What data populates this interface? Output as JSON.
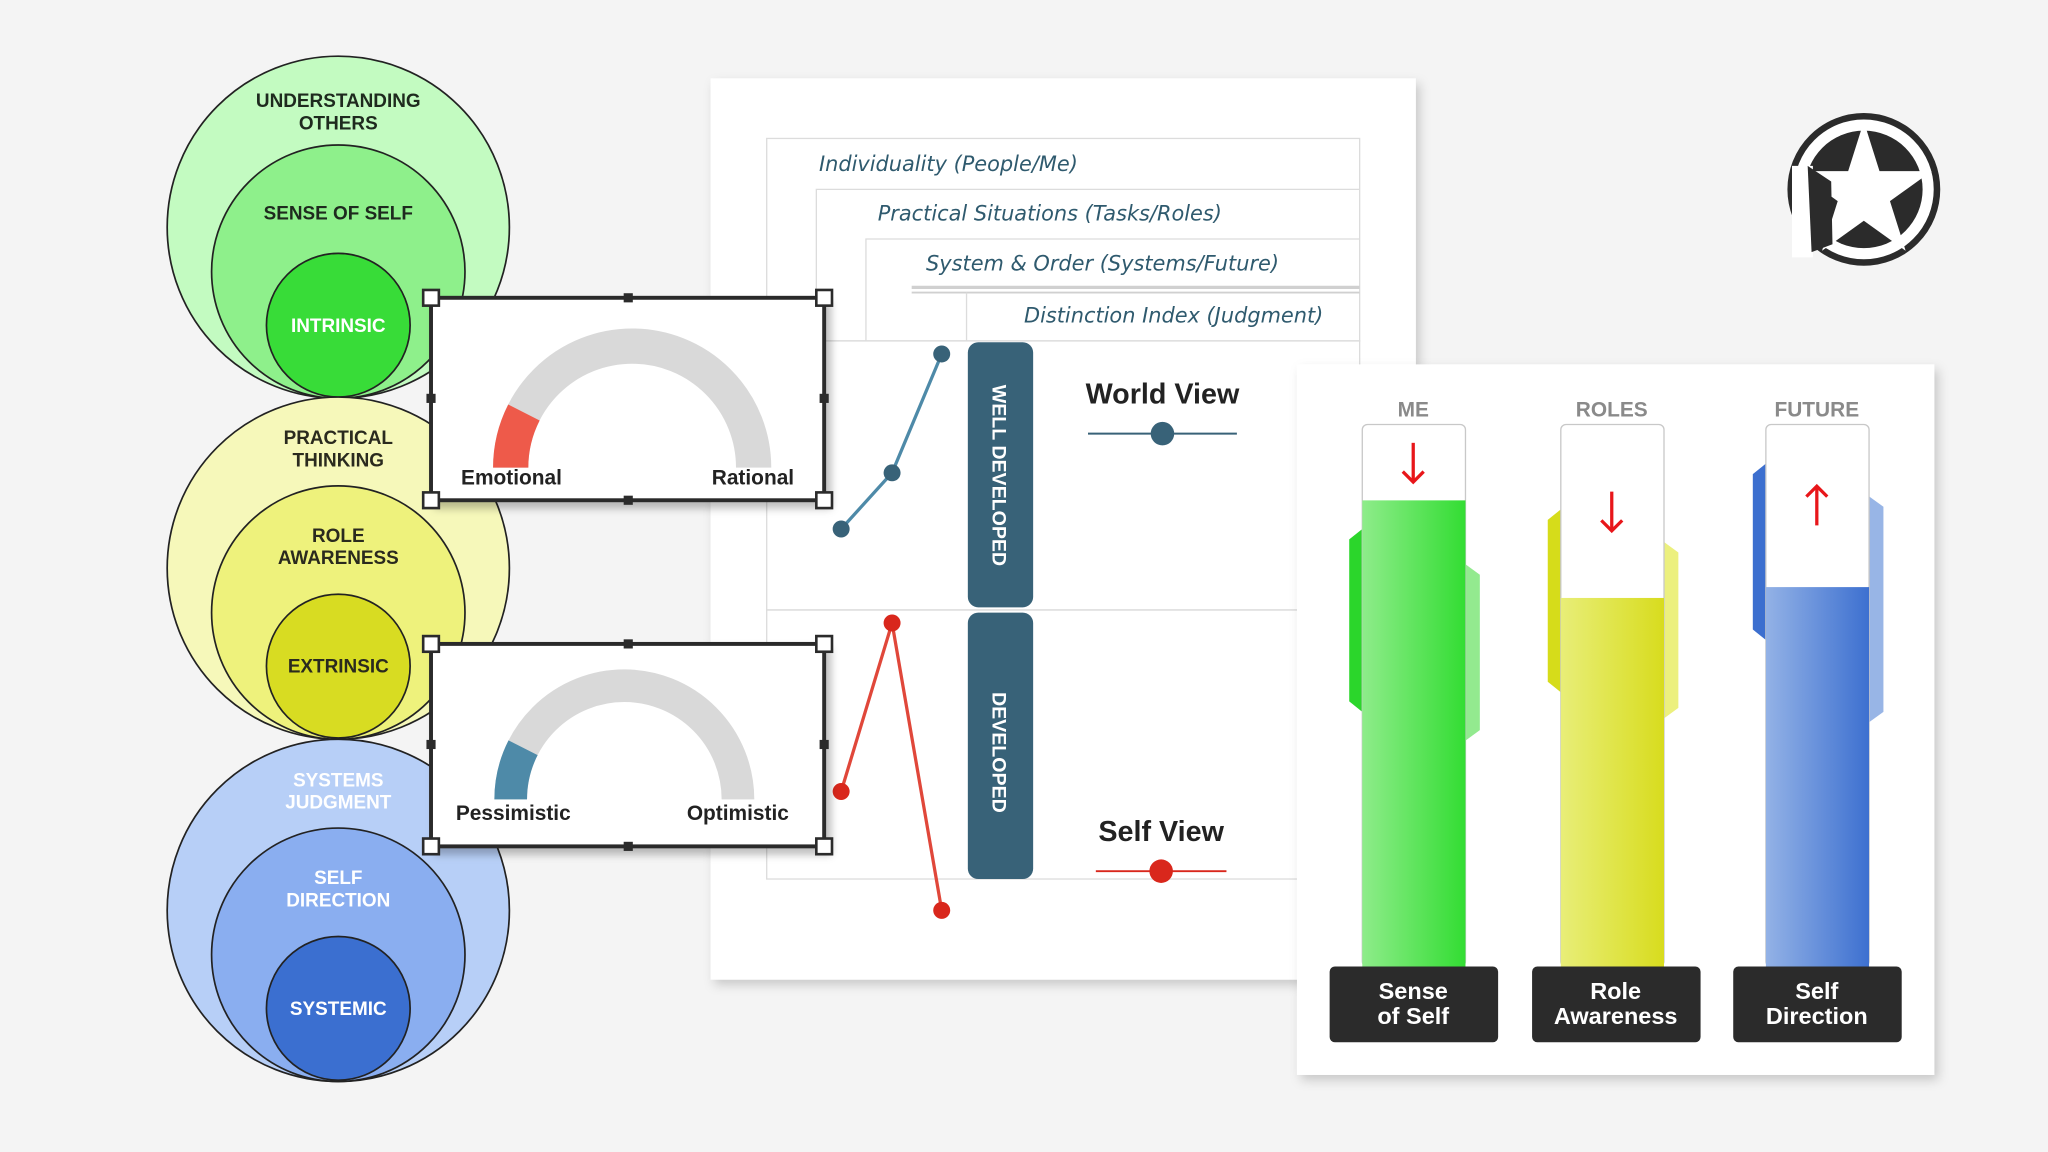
{
  "circle_groups": [
    {
      "outer": [
        "UNDERSTANDING",
        "OTHERS"
      ],
      "middle": [
        "SENSE OF SELF"
      ],
      "inner": "INTRINSIC",
      "colors": {
        "outer": "#c3fbc1",
        "middle": "#8ef08b",
        "inner": "#38dc38",
        "text": "#1e2a1e",
        "inner_text": "#ffffff"
      }
    },
    {
      "outer": [
        "PRACTICAL",
        "THINKING"
      ],
      "middle": [
        "ROLE",
        "AWARENESS"
      ],
      "inner": "EXTRINSIC",
      "colors": {
        "outer": "#f6f8ba",
        "middle": "#eef27c",
        "inner": "#d8dc22",
        "text": "#2a2a1e",
        "inner_text": "#2a2a1e"
      }
    },
    {
      "outer": [
        "SYSTEMS",
        "JUDGMENT"
      ],
      "middle": [
        "SELF",
        "DIRECTION"
      ],
      "inner": "SYSTEMIC",
      "colors": {
        "outer": "#b7cff7",
        "middle": "#8aaef0",
        "inner": "#3b6fd0",
        "text": "#ffffff",
        "inner_text": "#ffffff"
      }
    }
  ],
  "gauges": [
    {
      "left_label": "Emotional",
      "right_label": "Rational",
      "value": 0.15,
      "color": "#ee5a4a"
    },
    {
      "left_label": "Pessimistic",
      "right_label": "Optimistic",
      "value": 0.15,
      "color": "#4e8aa8"
    }
  ],
  "table_rows": [
    "Individuality (People/Me)",
    "Practical Situations (Tasks/Roles)",
    "System & Order (Systems/Future)",
    "Distinction Index (Judgment)"
  ],
  "levels": [
    "WELL DEVELOPED",
    "DEVELOPED"
  ],
  "world_view": {
    "label": "World View",
    "color": "#386278"
  },
  "self_view": {
    "label": "Self View",
    "color": "#d9271c"
  },
  "bars": [
    {
      "header": "ME",
      "label": [
        "Sense",
        "of Self"
      ],
      "fill": 0.86,
      "trend": "down",
      "colors": {
        "light": "#8eec8a",
        "dark": "#33dd33",
        "tab_left": "#2bd62b",
        "tab_right": "#93ea8f"
      }
    },
    {
      "header": "ROLES",
      "label": [
        "Role",
        "Awareness"
      ],
      "fill": 0.68,
      "trend": "down",
      "colors": {
        "light": "#e8ee78",
        "dark": "#d8dc1e",
        "tab_left": "#d6dc1a",
        "tab_right": "#ecf07e"
      }
    },
    {
      "header": "FUTURE",
      "label": [
        "Self",
        "Direction"
      ],
      "fill": 0.7,
      "trend": "up",
      "colors": {
        "light": "#93b2e6",
        "dark": "#3d70d0",
        "tab_left": "#3c6fcf",
        "tab_right": "#98b5e6"
      }
    }
  ],
  "accent": {
    "dark_bar": "#386278",
    "arrow": "#e8161a",
    "label_bg": "#2b2b2b",
    "logo": "#2b2b2b"
  },
  "logo_icon": "star-in-circle-icon"
}
